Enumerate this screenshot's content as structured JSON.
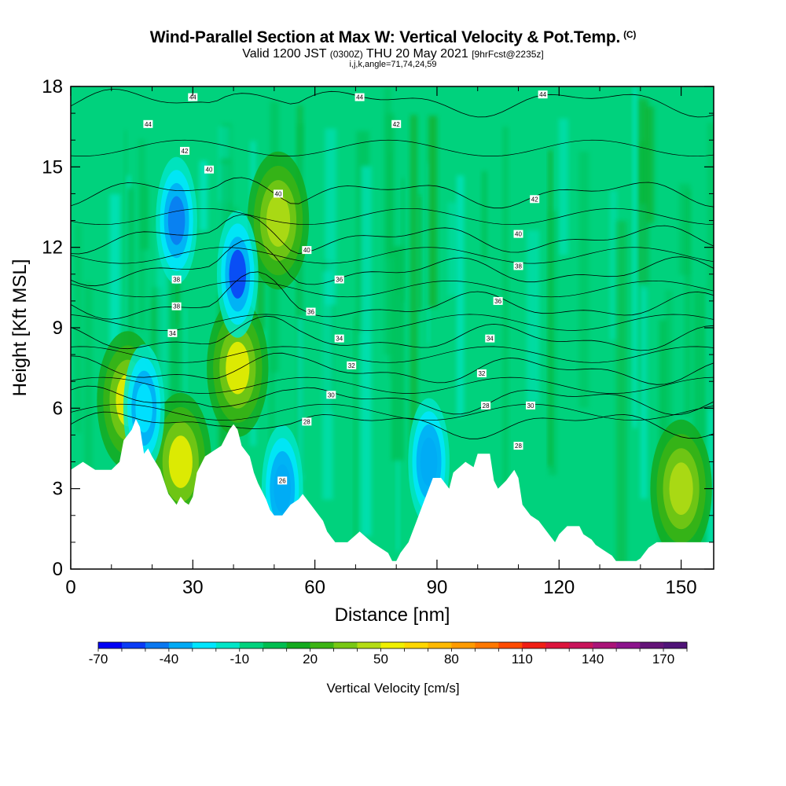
{
  "title": {
    "main": "Wind-Parallel Section at Max W: Vertical Velocity & Pot.Temp.",
    "copyright": "(C)",
    "valid_prefix": "Valid 1200 JST",
    "utc": "(0300Z)",
    "valid_date": "THU 20 May 2021",
    "forecast": "[9hrFcst@2235z]",
    "indices": "i,j,k,angle=71,74,24,59"
  },
  "chart_data": {
    "type": "heatmap",
    "xlabel": "Distance [nm]",
    "ylabel": "Height [Kft MSL]",
    "xlim": [
      0,
      158
    ],
    "ylim": [
      0,
      18
    ],
    "x_ticks": [
      0,
      30,
      60,
      90,
      120,
      150
    ],
    "y_ticks": [
      0,
      3,
      6,
      9,
      12,
      15,
      18
    ],
    "colorbar": {
      "label": "Vertical Velocity [cm/s]",
      "tick_labels": [
        "-70",
        "-40",
        "-10",
        "20",
        "50",
        "80",
        "110",
        "140",
        "170"
      ],
      "tick_values": [
        -70,
        -40,
        -10,
        20,
        50,
        80,
        110,
        140,
        170
      ],
      "min": -70,
      "max": 180,
      "step": 10,
      "colors": [
        "#0000f5",
        "#0a3cf5",
        "#0a78f0",
        "#00aaf5",
        "#00e6ff",
        "#00e6c8",
        "#00d27d",
        "#00be50",
        "#14aa1e",
        "#3cb414",
        "#78c814",
        "#b4dc14",
        "#f0f000",
        "#ffd700",
        "#ffb900",
        "#ff9b00",
        "#ff7800",
        "#ff4b00",
        "#f01e14",
        "#dc143c",
        "#c8145a",
        "#aa1478",
        "#8c148c",
        "#641478",
        "#501478"
      ]
    },
    "velocity_regions": [
      {
        "label": "updraft",
        "x": 51,
        "z": 13,
        "value": 45
      },
      {
        "label": "updraft",
        "x": 41,
        "z": 7.5,
        "value": 55
      },
      {
        "label": "updraft",
        "x": 27,
        "z": 4,
        "value": 55
      },
      {
        "label": "updraft",
        "x": 14,
        "z": 6.3,
        "value": 50
      },
      {
        "label": "updraft",
        "x": 150,
        "z": 3,
        "value": 45
      },
      {
        "label": "downdraft",
        "x": 41,
        "z": 11,
        "value": -60
      },
      {
        "label": "downdraft",
        "x": 26,
        "z": 13,
        "value": -45
      },
      {
        "label": "downdraft",
        "x": 52,
        "z": 3,
        "value": -35
      },
      {
        "label": "downdraft",
        "x": 88,
        "z": 4,
        "value": -35
      },
      {
        "label": "downdraft",
        "x": 18,
        "z": 6,
        "value": -30
      }
    ],
    "theta_contours": [
      {
        "value": 28,
        "z": 5.4
      },
      {
        "value": 30,
        "z": 6.3
      },
      {
        "value": 32,
        "z": 7.4
      },
      {
        "value": 34,
        "z": 8.6
      },
      {
        "value": 36,
        "z": 9.8
      },
      {
        "value": 38,
        "z": 11.1
      },
      {
        "value": 40,
        "z": 12.3
      },
      {
        "value": 42,
        "z": 14.0
      },
      {
        "value": 44,
        "z": 17.4
      }
    ],
    "contour_labels": [
      "44",
      "44",
      "44",
      "44",
      "42",
      "42",
      "42",
      "40",
      "40",
      "40",
      "40",
      "38",
      "38",
      "38",
      "36",
      "36",
      "36",
      "34",
      "34",
      "34",
      "32",
      "32",
      "30",
      "30",
      "28",
      "28",
      "28",
      "26"
    ],
    "terrain": [
      [
        0,
        3.7
      ],
      [
        3,
        4.0
      ],
      [
        6,
        3.7
      ],
      [
        10,
        3.7
      ],
      [
        12,
        4.0
      ],
      [
        13,
        4.8
      ],
      [
        15,
        5.2
      ],
      [
        16,
        5.6
      ],
      [
        17,
        5.3
      ],
      [
        18,
        4.3
      ],
      [
        19,
        4.5
      ],
      [
        20,
        4.2
      ],
      [
        22,
        3.7
      ],
      [
        24,
        2.8
      ],
      [
        25,
        2.6
      ],
      [
        26,
        2.4
      ],
      [
        27,
        2.7
      ],
      [
        28,
        2.5
      ],
      [
        29,
        2.4
      ],
      [
        30,
        2.7
      ],
      [
        31,
        3.6
      ],
      [
        33,
        4.2
      ],
      [
        35,
        4.4
      ],
      [
        37,
        4.6
      ],
      [
        39,
        5.2
      ],
      [
        40,
        5.4
      ],
      [
        41,
        5.2
      ],
      [
        42,
        4.6
      ],
      [
        44,
        4.2
      ],
      [
        45,
        3.6
      ],
      [
        46,
        3.2
      ],
      [
        48,
        2.6
      ],
      [
        49,
        2.2
      ],
      [
        50,
        2.0
      ],
      [
        52,
        2.0
      ],
      [
        54,
        2.4
      ],
      [
        56,
        2.6
      ],
      [
        57,
        2.8
      ],
      [
        59,
        2.4
      ],
      [
        61,
        2.0
      ],
      [
        62,
        1.8
      ],
      [
        63,
        1.4
      ],
      [
        64,
        1.2
      ],
      [
        65,
        1.0
      ],
      [
        68,
        1.0
      ],
      [
        71,
        1.4
      ],
      [
        74,
        1.0
      ],
      [
        76,
        0.8
      ],
      [
        78,
        0.6
      ],
      [
        79,
        0.3
      ],
      [
        80,
        0.3
      ],
      [
        81,
        0.6
      ],
      [
        83,
        1.0
      ],
      [
        84,
        1.4
      ],
      [
        85,
        1.8
      ],
      [
        86,
        2.2
      ],
      [
        87,
        2.6
      ],
      [
        88,
        3.0
      ],
      [
        89,
        3.4
      ],
      [
        91,
        3.4
      ],
      [
        93,
        3.0
      ],
      [
        94,
        3.6
      ],
      [
        97,
        4.0
      ],
      [
        99,
        3.8
      ],
      [
        100,
        4.3
      ],
      [
        103,
        4.3
      ],
      [
        104,
        3.3
      ],
      [
        105,
        3.0
      ],
      [
        107,
        3.3
      ],
      [
        109,
        3.7
      ],
      [
        110,
        3.4
      ],
      [
        111,
        2.4
      ],
      [
        113,
        2.0
      ],
      [
        115,
        1.8
      ],
      [
        117,
        1.4
      ],
      [
        118,
        1.2
      ],
      [
        119,
        1.0
      ],
      [
        120,
        1.3
      ],
      [
        122,
        1.6
      ],
      [
        125,
        1.6
      ],
      [
        126,
        1.3
      ],
      [
        128,
        1.1
      ],
      [
        129,
        0.9
      ],
      [
        131,
        0.7
      ],
      [
        133,
        0.5
      ],
      [
        134,
        0.3
      ],
      [
        136,
        0.3
      ],
      [
        139,
        0.3
      ],
      [
        140,
        0.4
      ],
      [
        141,
        0.6
      ],
      [
        142,
        0.8
      ],
      [
        144,
        1.0
      ],
      [
        150,
        1.0
      ],
      [
        158,
        1.0
      ]
    ]
  }
}
